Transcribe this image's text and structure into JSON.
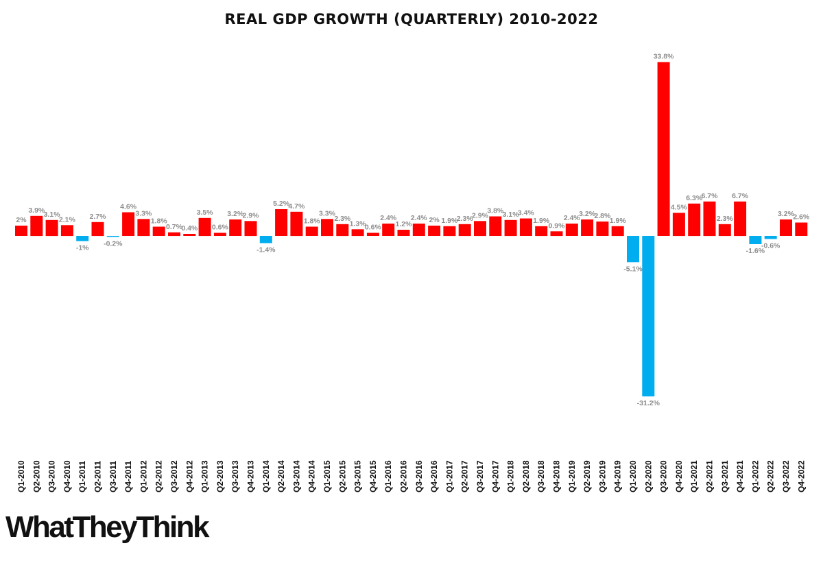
{
  "logo_text": "WhatTheyThink",
  "colors": {
    "positive": "#ff0000",
    "negative": "#00aeef",
    "value_label": "#8c8c8c",
    "tick_label": "#111111"
  },
  "chart_data": {
    "type": "bar",
    "title": "REAL GDP GROWTH (QUARTERLY) 2010-2022",
    "xlabel": "",
    "ylabel": "",
    "ylim": [
      -31.2,
      33.8
    ],
    "grid": false,
    "categories": [
      "Q1-2010",
      "Q2-2010",
      "Q3-2010",
      "Q4-2010",
      "Q1-2011",
      "Q2-2011",
      "Q3-2011",
      "Q4-2011",
      "Q1-2012",
      "Q2-2012",
      "Q3-2012",
      "Q4-2012",
      "Q1-2013",
      "Q2-2013",
      "Q3-2013",
      "Q4-2013",
      "Q1-2014",
      "Q2-2014",
      "Q3-2014",
      "Q4-2014",
      "Q1-2015",
      "Q2-2015",
      "Q3-2015",
      "Q4-2015",
      "Q1-2016",
      "Q2-2016",
      "Q3-2016",
      "Q4-2016",
      "Q1-2017",
      "Q2-2017",
      "Q3-2017",
      "Q4-2017",
      "Q1-2018",
      "Q2-2018",
      "Q3-2018",
      "Q4-2018",
      "Q1-2019",
      "Q2-2019",
      "Q3-2019",
      "Q4-2019",
      "Q1-2020",
      "Q2-2020",
      "Q3-2020",
      "Q4-2020",
      "Q1-2021",
      "Q2-2021",
      "Q3-2021",
      "Q4-2021",
      "Q1-2022",
      "Q2-2022",
      "Q3-2022",
      "Q4-2022"
    ],
    "values": [
      2,
      3.9,
      3.1,
      2.1,
      -1,
      2.7,
      -0.2,
      4.6,
      3.3,
      1.8,
      0.7,
      0.4,
      3.5,
      0.6,
      3.2,
      2.9,
      -1.4,
      5.2,
      4.7,
      1.8,
      3.3,
      2.3,
      1.3,
      0.6,
      2.4,
      1.2,
      2.4,
      2,
      1.9,
      2.3,
      2.9,
      3.8,
      3.1,
      3.4,
      1.9,
      0.9,
      2.4,
      3.2,
      2.8,
      1.9,
      -5.1,
      -31.2,
      33.8,
      4.5,
      6.3,
      6.7,
      2.3,
      6.7,
      -1.6,
      -0.6,
      3.2,
      2.6
    ],
    "data_labels": [
      "2%",
      "3.9%",
      "3.1%",
      "2.1%",
      "-1%",
      "2.7%",
      "-0.2%",
      "4.6%",
      "3.3%",
      "1.8%",
      "0.7%",
      "0.4%",
      "3.5%",
      "0.6%",
      "3.2%",
      "2.9%",
      "-1.4%",
      "5.2%",
      "4.7%",
      "1.8%",
      "3.3%",
      "2.3%",
      "1.3%",
      "0.6%",
      "2.4%",
      "1.2%",
      "2.4%",
      "2%",
      "1.9%",
      "2.3%",
      "2.9%",
      "3.8%",
      "3.1%",
      "3.4%",
      "1.9%",
      "0.9%",
      "2.4%",
      "3.2%",
      "2.8%",
      "1.9%",
      "-5.1%",
      "-31.2%",
      "33.8%",
      "4.5%",
      "6.3%",
      "6.7%",
      "2.3%",
      "6.7%",
      "-1.6%",
      "-0.6%",
      "3.2%",
      "2.6%"
    ]
  }
}
